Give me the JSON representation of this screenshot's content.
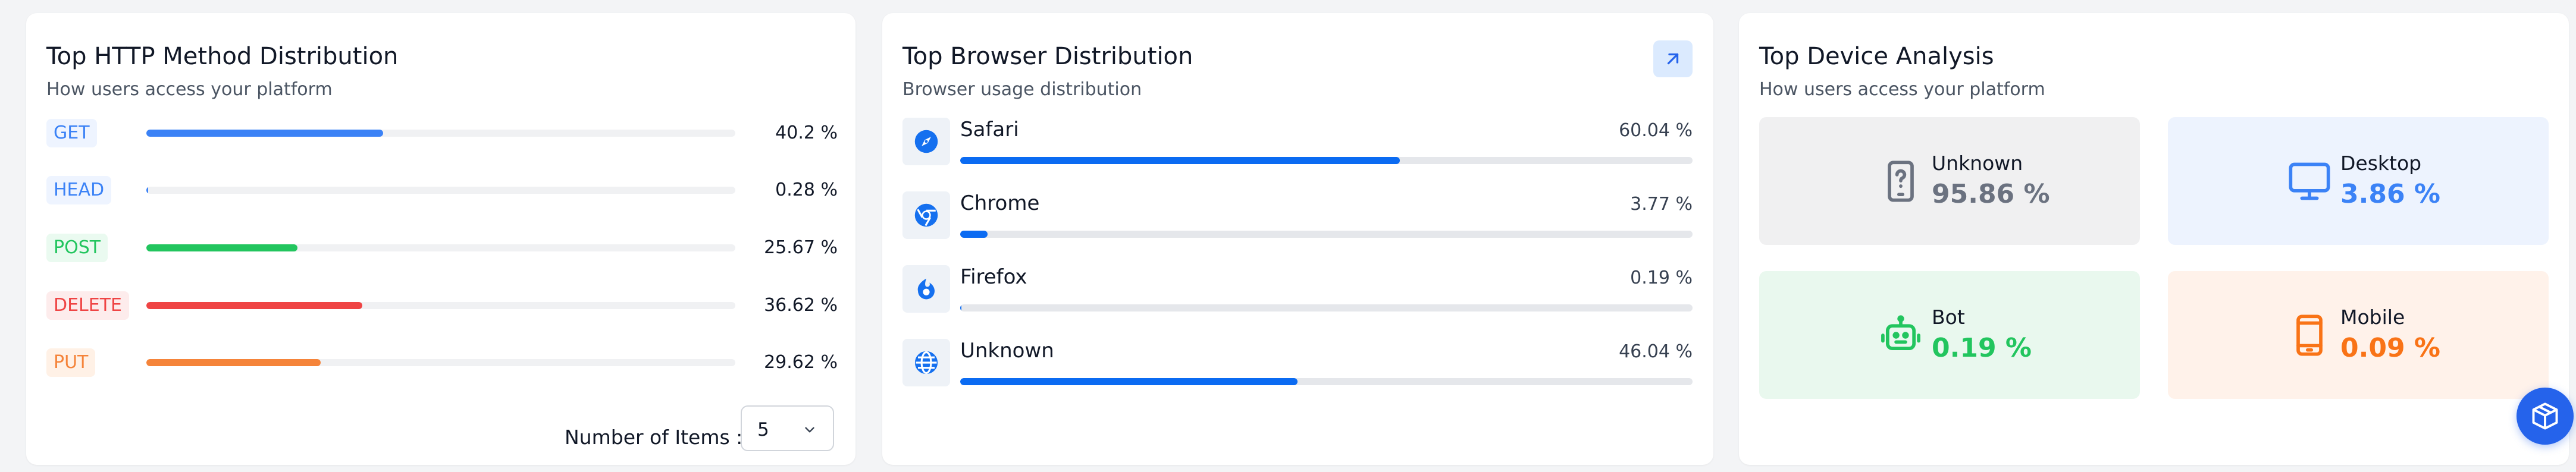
{
  "http_card": {
    "title": "Top HTTP Method Distribution",
    "subtitle": "How users access your platform",
    "methods": [
      {
        "method": "GET",
        "percent_label": "40.2 %",
        "fraction": 0.402,
        "color": "#3b82f6",
        "bg": "#eef4ff"
      },
      {
        "method": "HEAD",
        "percent_label": "0.28 %",
        "fraction": 0.0028,
        "color": "#3b82f6",
        "bg": "#eef4ff"
      },
      {
        "method": "POST",
        "percent_label": "25.67 %",
        "fraction": 0.2567,
        "color": "#22c55e",
        "bg": "#eafaf0"
      },
      {
        "method": "DELETE",
        "percent_label": "36.62 %",
        "fraction": 0.3662,
        "color": "#ef4444",
        "bg": "#fdecec"
      },
      {
        "method": "PUT",
        "percent_label": "29.62 %",
        "fraction": 0.2962,
        "color": "#f5843a",
        "bg": "#fff1e6"
      }
    ],
    "items_label": "Number of Items :",
    "items_value": "5"
  },
  "browser_card": {
    "title": "Top Browser Distribution",
    "subtitle": "Browser usage distribution",
    "browsers": [
      {
        "name": "Safari",
        "percent_label": "60.04 %",
        "fraction": 0.6004,
        "icon": "compass-icon"
      },
      {
        "name": "Chrome",
        "percent_label": "3.77 %",
        "fraction": 0.0377,
        "icon": "chrome-icon"
      },
      {
        "name": "Firefox",
        "percent_label": "0.19 %",
        "fraction": 0.0019,
        "icon": "firefox-icon"
      },
      {
        "name": "Unknown",
        "percent_label": "46.04 %",
        "fraction": 0.4604,
        "icon": "globe-icon"
      }
    ]
  },
  "device_card": {
    "title": "Top Device Analysis",
    "subtitle": "How users access your platform",
    "devices": [
      {
        "label": "Unknown",
        "value": "95.86 %",
        "icon": "phone-question-icon",
        "color": "#6b7280",
        "bg": "#f0f0f1"
      },
      {
        "label": "Desktop",
        "value": "3.86 %",
        "icon": "monitor-icon",
        "color": "#3b82f6",
        "bg": "#edf3fe"
      },
      {
        "label": "Bot",
        "value": "0.19 %",
        "icon": "robot-icon",
        "color": "#22c55e",
        "bg": "#e9f8ee"
      },
      {
        "label": "Mobile",
        "value": "0.09 %",
        "icon": "mobile-icon",
        "color": "#f97316",
        "bg": "#fff2ea"
      }
    ]
  }
}
